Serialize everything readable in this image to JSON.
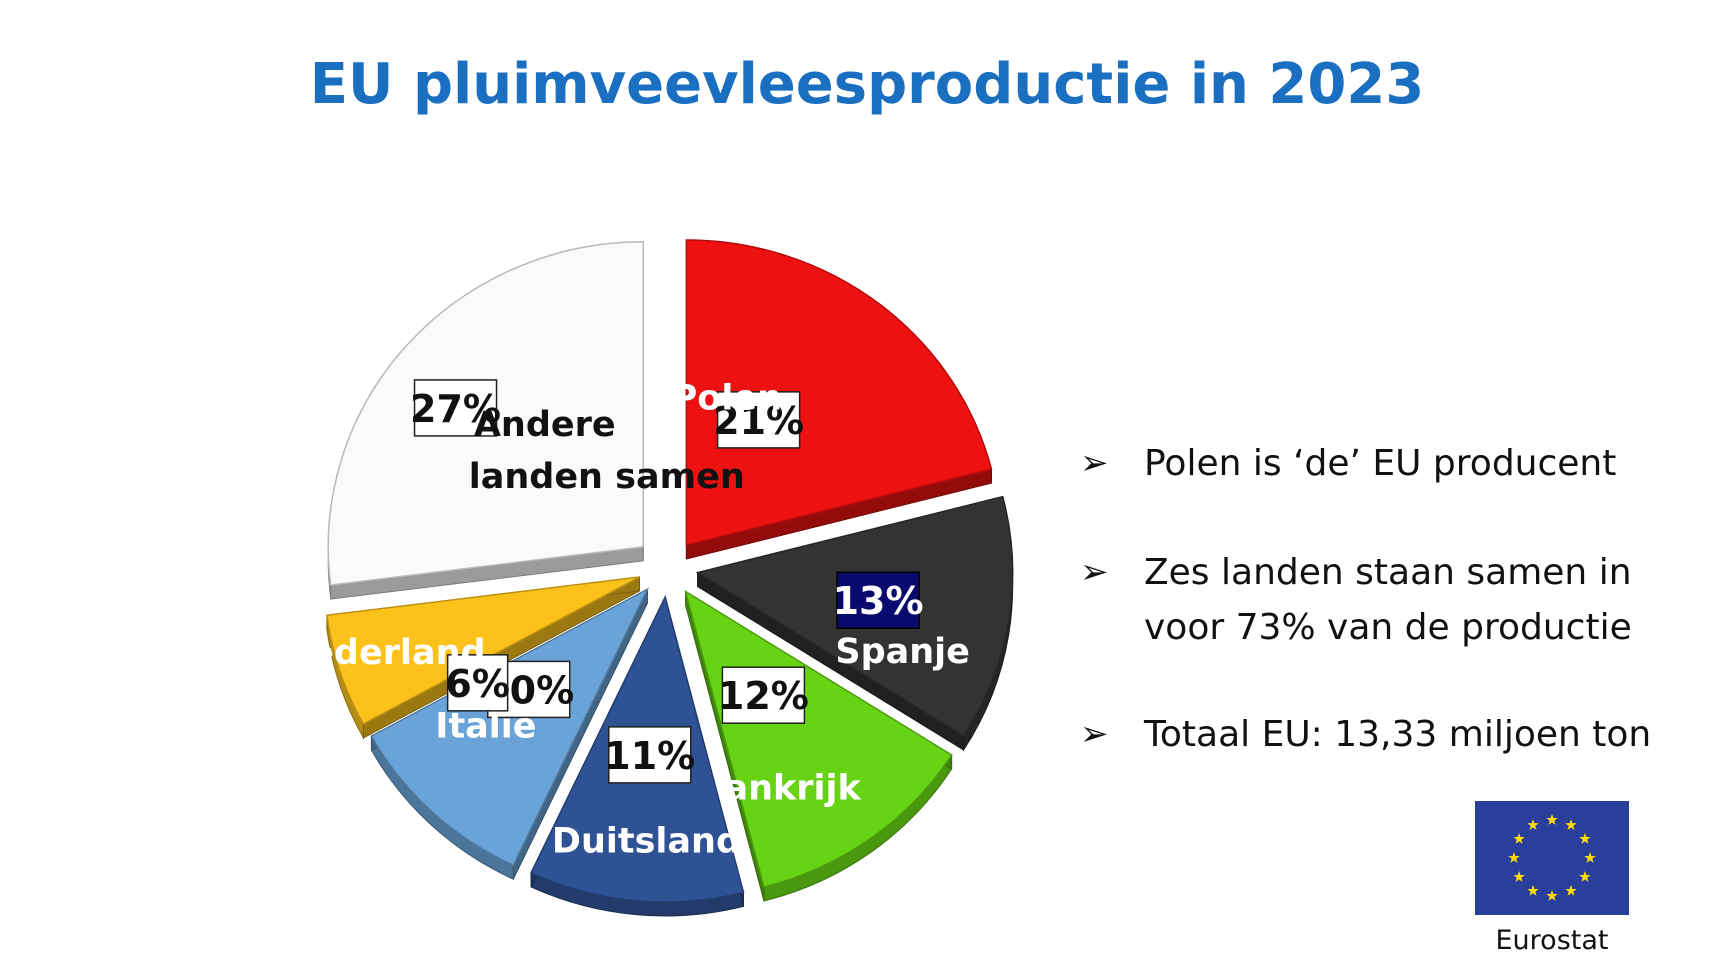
{
  "title": "EU pluimveevleesproductie in 2023",
  "chart_data": {
    "type": "pie",
    "title": "EU pluimveevleesproductie in 2023",
    "slices": [
      {
        "label": "Polen",
        "value": 21,
        "value_label": "21%",
        "color": "#ee1111"
      },
      {
        "label": "Spanje",
        "value": 13,
        "value_label": "13%",
        "color": "#333333"
      },
      {
        "label": "Frankrijk",
        "value": 12,
        "value_label": "12%",
        "color": "#66d314"
      },
      {
        "label": "Duitsland",
        "value": 11,
        "value_label": "11%",
        "color": "#2f5294"
      },
      {
        "label": "Italië",
        "value": 10,
        "value_label": "10%",
        "color": "#6aa3d8"
      },
      {
        "label": "Nederland",
        "value": 6,
        "value_label": "6%",
        "color": "#fcc21b"
      },
      {
        "label": "Andere landen samen",
        "value": 27,
        "value_label": "27%",
        "color": "#fafafa"
      }
    ],
    "exploded": true,
    "style": "3d"
  },
  "bullets": [
    {
      "arrow": "➢",
      "text": "Polen is ‘de’ EU producent"
    },
    {
      "arrow": "➢",
      "text": "Zes landen staan samen in voor 73% van de productie"
    },
    {
      "arrow": "➢",
      "text": "Totaal EU: 13,33 miljoen ton"
    }
  ],
  "logo": {
    "name": "eu-flag-icon",
    "color": "#2a3e9c",
    "star_color": "#ffdd00"
  },
  "source": "Eurostat"
}
